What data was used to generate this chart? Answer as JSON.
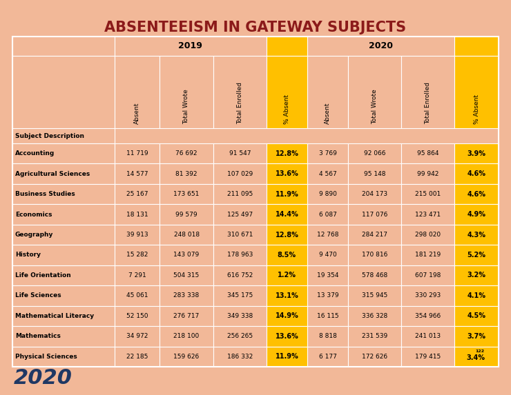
{
  "title": "ABSENTEEISM IN GATEWAY SUBJECTS",
  "title_color": "#8B1A1A",
  "bg_color": "#F2B898",
  "yellow_bg": "#FFC000",
  "white_border": "#FFFFFF",
  "col_headers": [
    "Absent",
    "Total Wrote",
    "Total Enrolled",
    "% Absent",
    "Absent",
    "Total Wrote",
    "Total Enrolled",
    "% Absent"
  ],
  "subjects": [
    "Accounting",
    "Agricultural Sciences",
    "Business Studies",
    "Economics",
    "Geography",
    "History",
    "Life Orientation",
    "Life Sciences",
    "Mathematical Literacy",
    "Mathematics",
    "Physical Sciences"
  ],
  "data_2019": [
    [
      "11 719",
      "76 692",
      "91 547",
      "12.8%"
    ],
    [
      "14 577",
      "81 392",
      "107 029",
      "13.6%"
    ],
    [
      "25 167",
      "173 651",
      "211 095",
      "11.9%"
    ],
    [
      "18 131",
      "99 579",
      "125 497",
      "14.4%"
    ],
    [
      "39 913",
      "248 018",
      "310 671",
      "12.8%"
    ],
    [
      "15 282",
      "143 079",
      "178 963",
      "8.5%"
    ],
    [
      "7 291",
      "504 315",
      "616 752",
      "1.2%"
    ],
    [
      "45 061",
      "283 338",
      "345 175",
      "13.1%"
    ],
    [
      "52 150",
      "276 717",
      "349 338",
      "14.9%"
    ],
    [
      "34 972",
      "218 100",
      "256 265",
      "13.6%"
    ],
    [
      "22 185",
      "159 626",
      "186 332",
      "11.9%"
    ]
  ],
  "data_2020": [
    [
      "3 769",
      "92 066",
      "95 864",
      "3.9%"
    ],
    [
      "4 567",
      "95 148",
      "99 942",
      "4.6%"
    ],
    [
      "9 890",
      "204 173",
      "215 001",
      "4.6%"
    ],
    [
      "6 087",
      "117 076",
      "123 471",
      "4.9%"
    ],
    [
      "12 768",
      "284 217",
      "298 020",
      "4.3%"
    ],
    [
      "9 470",
      "170 816",
      "181 219",
      "5.2%"
    ],
    [
      "19 354",
      "578 468",
      "607 198",
      "3.2%"
    ],
    [
      "13 379",
      "315 945",
      "330 293",
      "4.1%"
    ],
    [
      "16 115",
      "336 328",
      "354 966",
      "4.5%"
    ],
    [
      "8 818",
      "231 539",
      "241 013",
      "3.7%"
    ],
    [
      "6 177",
      "172 626",
      "179 415",
      "3.4%"
    ]
  ],
  "last_row_superscript": "122",
  "logo_text": "2020",
  "logo_color": "#1F3864"
}
